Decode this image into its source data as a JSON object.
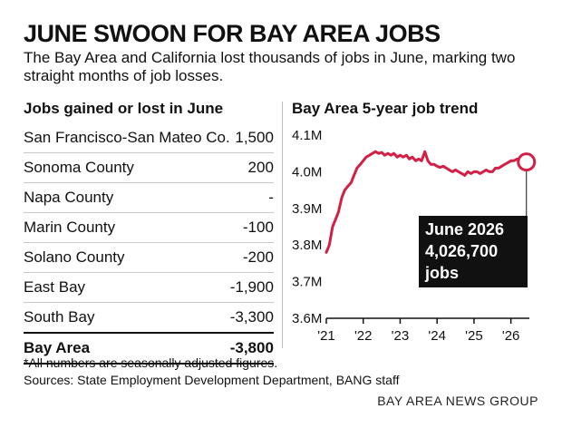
{
  "header": {
    "title": "JUNE SWOON FOR BAY AREA JOBS",
    "subtitle": "The Bay Area and California lost thousands of jobs in June, marking two straight months of job losses."
  },
  "left_panel": {
    "title": "Jobs gained or lost in June",
    "rows": [
      {
        "label": "San Francisco-San Mateo Co.",
        "value": "1,500"
      },
      {
        "label": "Sonoma County",
        "value": "200"
      },
      {
        "label": "Napa County",
        "value": "-"
      },
      {
        "label": "Marin County",
        "value": "-100"
      },
      {
        "label": "Solano County",
        "value": "-200"
      },
      {
        "label": "East Bay",
        "value": "-1,900"
      },
      {
        "label": "South Bay",
        "value": "-3,300"
      }
    ],
    "total": {
      "label": "Bay Area",
      "value": "-3,800"
    }
  },
  "right_panel": {
    "title": "Bay Area 5-year job trend"
  },
  "callout": {
    "line1": "June 2026",
    "line2": "4,026,700",
    "line3": "jobs"
  },
  "footer": {
    "footnote": "*All numbers are seasonally adjusted figures.",
    "sources": "Sources: State Employment Development Department, BANG staff",
    "credit": "BAY AREA NEWS GROUP"
  },
  "colors": {
    "line": "#d31f45",
    "text": "#111111",
    "callout_bg": "#111111"
  },
  "chart_data": {
    "type": "line",
    "title": "Bay Area 5-year job trend",
    "xlabel": "",
    "ylabel": "",
    "xlim": [
      2021.0,
      2026.5
    ],
    "ylim": [
      3.6,
      4.1
    ],
    "y_unit": "millions of jobs",
    "y_ticks": [
      3.6,
      3.7,
      3.8,
      3.9,
      4.0,
      4.1
    ],
    "y_tick_labels": [
      "3.6M",
      "3.7M",
      "3.8M",
      "3.9M",
      "4.0M",
      "4.1M"
    ],
    "x_ticks": [
      2021,
      2022,
      2023,
      2024,
      2025,
      2026
    ],
    "x_tick_labels": [
      "'21",
      "'22",
      "'23",
      "'24",
      "'25",
      "'26"
    ],
    "grid": false,
    "series": [
      {
        "x": [
          2021.0,
          2021.08,
          2021.17,
          2021.25,
          2021.33,
          2021.42,
          2021.5,
          2021.58,
          2021.67,
          2021.75,
          2021.83,
          2021.92,
          2022.0,
          2022.08,
          2022.17,
          2022.25,
          2022.33,
          2022.42,
          2022.5,
          2022.58,
          2022.67,
          2022.75,
          2022.83,
          2022.92,
          2023.0,
          2023.08,
          2023.17,
          2023.25,
          2023.33,
          2023.42,
          2023.5,
          2023.58,
          2023.67,
          2023.75,
          2023.83,
          2023.92,
          2024.0,
          2024.08,
          2024.17,
          2024.25,
          2024.33,
          2024.42,
          2024.5,
          2024.58,
          2024.67,
          2024.75,
          2024.83,
          2024.92,
          2025.0,
          2025.08,
          2025.17,
          2025.25,
          2025.33,
          2025.42,
          2025.5,
          2025.58,
          2025.67,
          2025.75,
          2025.83,
          2025.92,
          2026.0,
          2026.08,
          2026.17,
          2026.25,
          2026.33,
          2026.42
        ],
        "y": [
          3.78,
          3.8,
          3.85,
          3.87,
          3.89,
          3.93,
          3.95,
          3.96,
          3.97,
          3.99,
          4.01,
          4.02,
          4.03,
          4.04,
          4.045,
          4.05,
          4.055,
          4.05,
          4.053,
          4.045,
          4.05,
          4.045,
          4.05,
          4.04,
          4.045,
          4.04,
          4.045,
          4.035,
          4.04,
          4.03,
          4.035,
          4.03,
          4.055,
          4.03,
          4.02,
          4.02,
          4.015,
          4.012,
          4.015,
          4.01,
          4.005,
          4.0,
          4.005,
          4.0,
          3.995,
          3.99,
          4.0,
          3.995,
          4.0,
          4.0,
          3.995,
          4.0,
          4.005,
          4.0,
          4.0,
          4.01,
          4.01,
          4.015,
          4.02,
          4.025,
          4.03,
          4.03,
          4.035,
          4.03,
          4.035,
          4.027
        ]
      }
    ],
    "highlight": {
      "x": 2026.42,
      "y": 4.0267
    }
  }
}
